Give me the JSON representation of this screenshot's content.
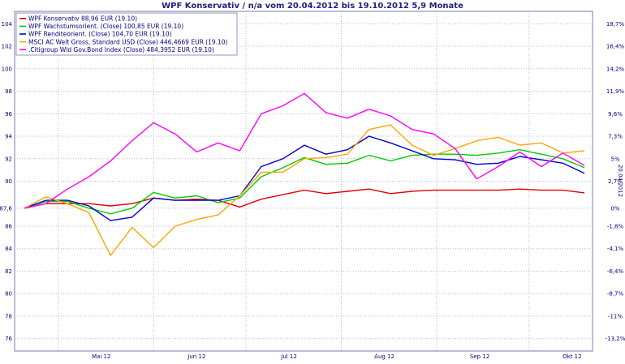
{
  "chart_data": {
    "type": "line",
    "title": "WPF Konservativ / n/a vom 20.04.2012 bis 19.10.2012 5,9 Monate",
    "side_label": "20.04.2012",
    "x_tick_labels": [
      "Mai 12",
      "Jun 12",
      "Jul 12",
      "Aug 12",
      "Sep 12",
      "Okt 12"
    ],
    "x_range": [
      "2012-04-20",
      "2012-10-19"
    ],
    "y_left_ticks": [
      "104",
      "102",
      "100",
      "98",
      "96",
      "94",
      "92",
      "90",
      "87,6",
      "86",
      "84",
      "82",
      "80",
      "78",
      "76"
    ],
    "y_left_range": [
      74.9,
      105.1
    ],
    "y_right_ticks": [
      "18,7%",
      "16,4%",
      "14,2%",
      "11,9%",
      "9,6%",
      "7,3%",
      "5%",
      "2,7%",
      "0%",
      "-1,8%",
      "-4,1%",
      "-6,4%",
      "-8,7%",
      "-11%",
      "-13,2%"
    ],
    "grid": true,
    "legend_position": "top-left",
    "x": [
      "2012-04-20",
      "2012-04-27",
      "2012-05-04",
      "2012-05-11",
      "2012-05-18",
      "2012-05-25",
      "2012-06-01",
      "2012-06-08",
      "2012-06-15",
      "2012-06-22",
      "2012-06-29",
      "2012-07-06",
      "2012-07-13",
      "2012-07-20",
      "2012-07-27",
      "2012-08-03",
      "2012-08-10",
      "2012-08-17",
      "2012-08-24",
      "2012-08-31",
      "2012-09-07",
      "2012-09-14",
      "2012-09-21",
      "2012-09-28",
      "2012-10-05",
      "2012-10-12",
      "2012-10-19"
    ],
    "series": [
      {
        "name": "WPF Konservativ 88,96 EUR (19.10)",
        "color": "#e00000",
        "values": [
          87.6,
          88.0,
          88.0,
          88.0,
          87.8,
          88.0,
          88.5,
          88.3,
          88.4,
          88.3,
          87.7,
          88.4,
          88.8,
          89.2,
          88.9,
          89.1,
          89.3,
          88.9,
          89.1,
          89.2,
          89.2,
          89.2,
          89.2,
          89.3,
          89.2,
          89.2,
          88.96
        ]
      },
      {
        "name": "WPF Wachstumsorient. (Close) 100,85 EUR (19.10)",
        "color": "#00cc00",
        "values": [
          87.6,
          88.2,
          88.2,
          87.6,
          87.1,
          87.6,
          89.0,
          88.5,
          88.7,
          88.1,
          88.5,
          90.4,
          91.2,
          92.1,
          91.5,
          91.6,
          92.3,
          91.8,
          92.3,
          92.4,
          92.4,
          92.3,
          92.5,
          92.8,
          92.4,
          92.0,
          91.2
        ]
      },
      {
        "name": "WPF Renditeorient. (Close) 104,70 EUR (19.10)",
        "color": "#0000cc",
        "values": [
          87.6,
          88.3,
          88.3,
          87.8,
          86.5,
          86.8,
          88.5,
          88.3,
          88.3,
          88.3,
          88.7,
          91.3,
          92.0,
          93.2,
          92.4,
          92.8,
          94.0,
          93.4,
          92.7,
          92.0,
          91.9,
          91.5,
          91.6,
          92.2,
          91.9,
          91.6,
          90.7
        ]
      },
      {
        "name": "MSCI AC Welt Gross, Standard USD (Close) 446,4669 EUR (19.10)",
        "color": "#ffa500",
        "values": [
          87.6,
          88.6,
          88.0,
          87.2,
          83.4,
          85.9,
          84.1,
          86.0,
          86.6,
          87.0,
          88.7,
          90.8,
          90.8,
          92.0,
          92.1,
          92.4,
          94.6,
          95.0,
          93.2,
          92.3,
          92.9,
          93.6,
          93.9,
          93.2,
          93.4,
          92.5,
          92.7
        ]
      },
      {
        "name": ".Citigroup Wld Gov.Bond Index (Close) 484,3952 EUR (19.10)",
        "color": "#ff00ff",
        "values": [
          87.6,
          88.0,
          89.3,
          90.4,
          91.8,
          93.6,
          95.2,
          94.2,
          92.6,
          93.4,
          92.7,
          96.0,
          96.7,
          97.8,
          96.1,
          95.6,
          96.4,
          95.8,
          94.6,
          94.2,
          92.9,
          90.2,
          91.3,
          92.6,
          91.3,
          92.5,
          91.4
        ]
      }
    ]
  }
}
